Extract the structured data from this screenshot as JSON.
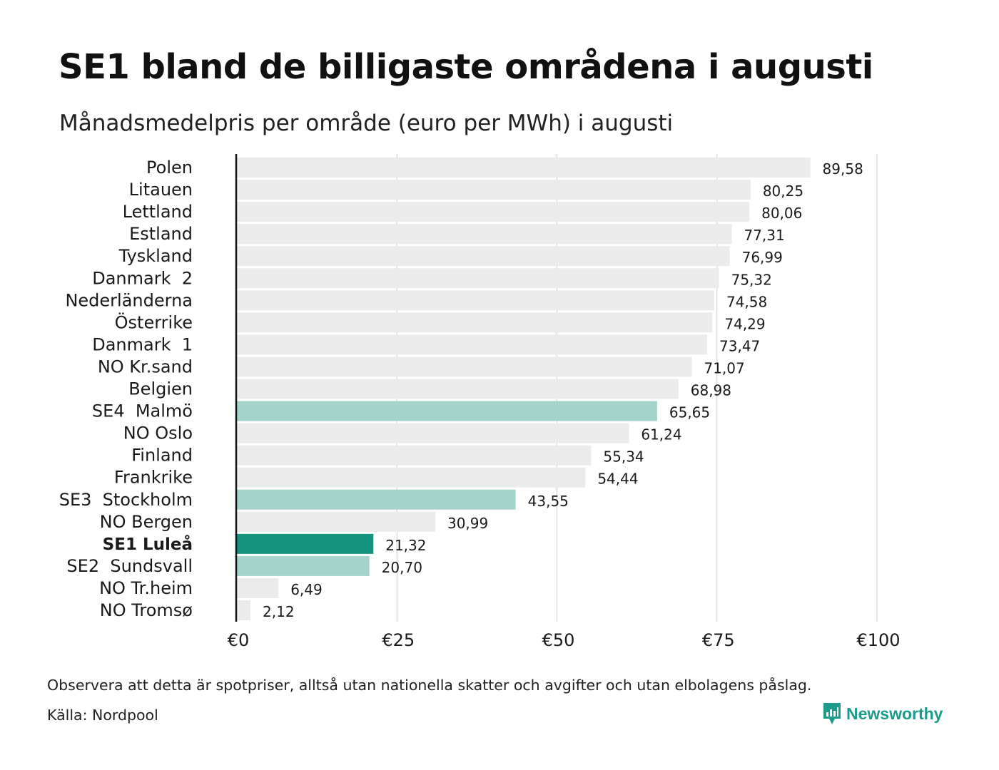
{
  "title": "SE1 bland de billigaste områdena i augusti",
  "subtitle": "Månadsmedelpris per område (euro per MWh) i augusti",
  "footer": {
    "note": "Observera att detta är spotpriser, alltså utan nationella skatter och avgifter och utan elbolagens påslag.",
    "source": "Källa: Nordpool",
    "brand": "Newsworthy",
    "brand_icon": "newsworthy-logo-icon"
  },
  "colors": {
    "default_bar": "#ebebeb",
    "swedish_bar": "#a6d3cb",
    "highlight_bar": "#15937f",
    "grid": "#cccccc",
    "axis": "#111111",
    "brand": "#1e9a8a"
  },
  "chart_data": {
    "type": "bar",
    "orientation": "horizontal",
    "title": "SE1 bland de billigaste områdena i augusti",
    "subtitle": "Månadsmedelpris per område (euro per MWh) i augusti",
    "xlim": [
      0,
      100
    ],
    "x_ticks": [
      0,
      25,
      50,
      75,
      100
    ],
    "x_tick_labels": [
      "€0",
      "€25",
      "€50",
      "€75",
      "€100"
    ],
    "grid": "vertical",
    "categories": [
      "Polen",
      "Litauen",
      "Lettland",
      "Estland",
      "Tyskland",
      "Danmark  2",
      "Nederländerna",
      "Österrike",
      "Danmark  1",
      "NO Kr.sand",
      "Belgien",
      "SE4  Malmö",
      "NO Oslo",
      "Finland",
      "Frankrike",
      "SE3  Stockholm",
      "NO Bergen",
      "SE1 Luleå",
      "SE2  Sundsvall",
      "NO Tr.heim",
      "NO Tromsø"
    ],
    "values": [
      89.58,
      80.25,
      80.06,
      77.31,
      76.99,
      75.32,
      74.58,
      74.29,
      73.47,
      71.07,
      68.98,
      65.65,
      61.24,
      55.34,
      54.44,
      43.55,
      30.99,
      21.32,
      20.7,
      6.49,
      2.12
    ],
    "value_labels": [
      "89,58",
      "80,25",
      "80,06",
      "77,31",
      "76,99",
      "75,32",
      "74,58",
      "74,29",
      "73,47",
      "71,07",
      "68,98",
      "65,65",
      "61,24",
      "55,34",
      "54,44",
      "43,55",
      "30,99",
      "21,32",
      "20,70",
      "6,49",
      "2,12"
    ],
    "bar_groups": [
      "other",
      "other",
      "other",
      "other",
      "other",
      "other",
      "other",
      "other",
      "other",
      "other",
      "other",
      "swedish",
      "other",
      "other",
      "other",
      "swedish",
      "other",
      "highlight",
      "swedish",
      "other",
      "other"
    ],
    "highlighted_category": "SE1 Luleå"
  }
}
